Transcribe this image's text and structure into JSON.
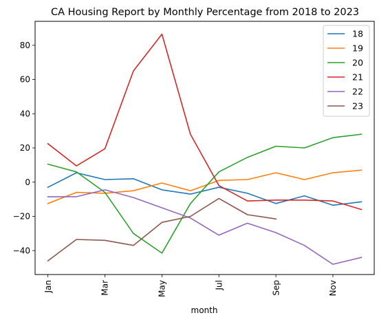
{
  "chart_data": {
    "type": "line",
    "title": "CA Housing Report by Monthly Percentage from 2018 to 2023",
    "xlabel": "month",
    "ylabel": "",
    "x": [
      1,
      2,
      3,
      4,
      5,
      6,
      7,
      8,
      9,
      10,
      11,
      12
    ],
    "x_tick_labels": [
      "Jan",
      "Mar",
      "May",
      "Jul",
      "Sep",
      "Nov"
    ],
    "x_tick_positions": [
      1,
      3,
      5,
      7,
      9,
      11
    ],
    "xlim": [
      0.55,
      12.45
    ],
    "ylim": [
      -54,
      94
    ],
    "y_ticks": [
      -40,
      -20,
      0,
      20,
      40,
      60,
      80
    ],
    "y_tick_labels": [
      "−40",
      "−20",
      "0",
      "20",
      "40",
      "60",
      "80"
    ],
    "grid": false,
    "legend_position": "top-right",
    "series": [
      {
        "name": "18",
        "color": "#1f77b4",
        "values": [
          -3,
          5.5,
          1.5,
          2,
          -4.5,
          -7,
          -3,
          -6.5,
          -12.5,
          -8,
          -13.5,
          -11.5
        ]
      },
      {
        "name": "19",
        "color": "#ff7f0e",
        "values": [
          -12.5,
          -6,
          -6.5,
          -5,
          -0.5,
          -5,
          1,
          1.5,
          5.5,
          1.5,
          5.5,
          7
        ]
      },
      {
        "name": "20",
        "color": "#2ca02c",
        "values": [
          10.5,
          6,
          -6,
          -30,
          -41.5,
          -12.5,
          6,
          14.5,
          21,
          20,
          26,
          28
        ]
      },
      {
        "name": "21",
        "color": "#d62728",
        "values": [
          22.5,
          9.5,
          19.5,
          65,
          86.5,
          28,
          -2,
          -11,
          -10.5,
          -10.5,
          -11,
          -16
        ]
      },
      {
        "name": "22",
        "color": "#9467bd",
        "values": [
          -8.5,
          -8.5,
          -4.5,
          -9,
          -15,
          -21,
          -31,
          -24,
          -29.5,
          -37,
          -48,
          -44
        ]
      },
      {
        "name": "23",
        "color": "#8c564b",
        "values": [
          -46,
          -33.5,
          -34,
          -37,
          -23.5,
          -20,
          -9.5,
          -19,
          -21.5,
          null,
          null,
          null
        ]
      }
    ]
  }
}
